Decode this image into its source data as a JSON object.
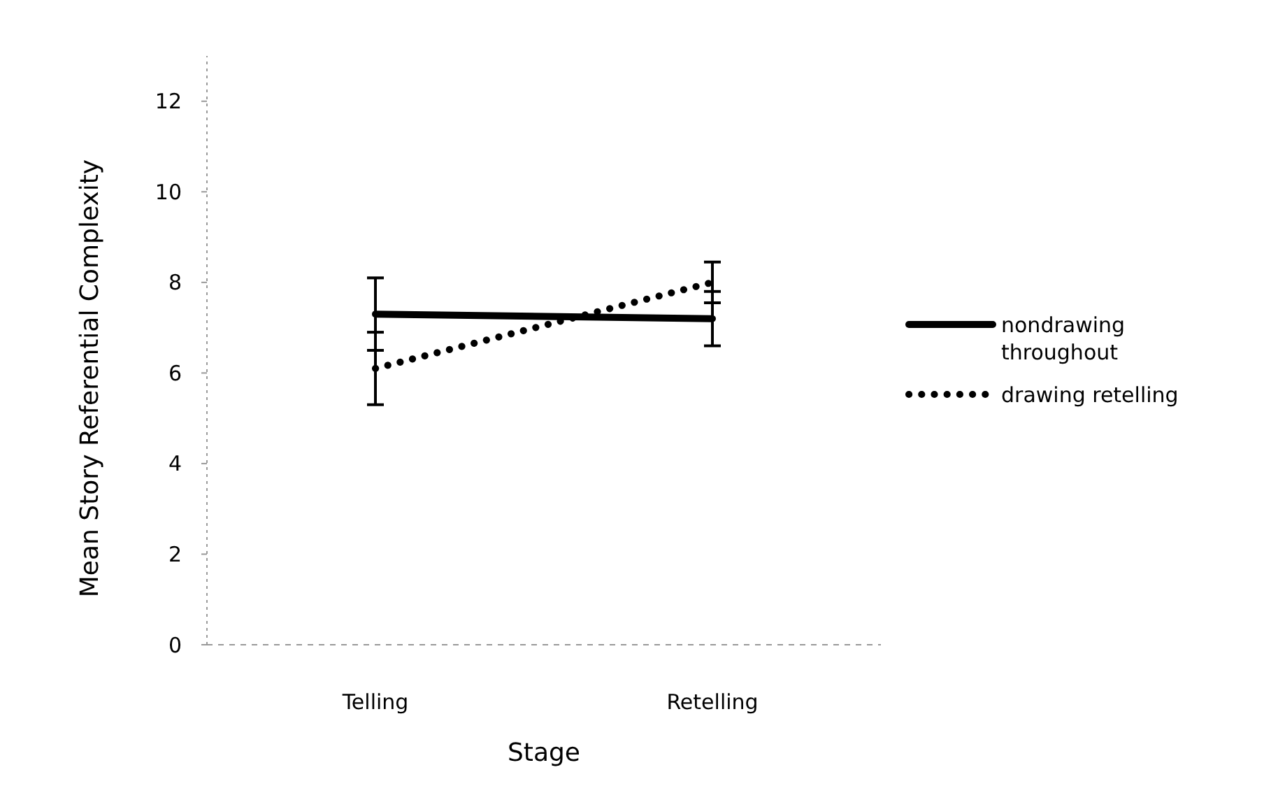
{
  "chart_data": {
    "type": "line",
    "xlabel": "Stage",
    "ylabel": "Mean Story Referential Complexity",
    "categories": [
      "Telling",
      "Retelling"
    ],
    "series": [
      {
        "name": "nondrawing throughout",
        "color": "#000000",
        "values": [
          7.3,
          7.2
        ],
        "errors": [
          0.8,
          0.6
        ],
        "line_style": "solid"
      },
      {
        "name": "drawing retelling",
        "color": "#000000",
        "values": [
          6.1,
          8.0
        ],
        "errors": [
          0.8,
          0.45
        ],
        "line_style": "dotted"
      }
    ],
    "ylim": [
      0,
      13
    ],
    "yticks": [
      0,
      2,
      4,
      6,
      8,
      10,
      12
    ],
    "grid": false,
    "legend": "right",
    "marker": "none"
  }
}
